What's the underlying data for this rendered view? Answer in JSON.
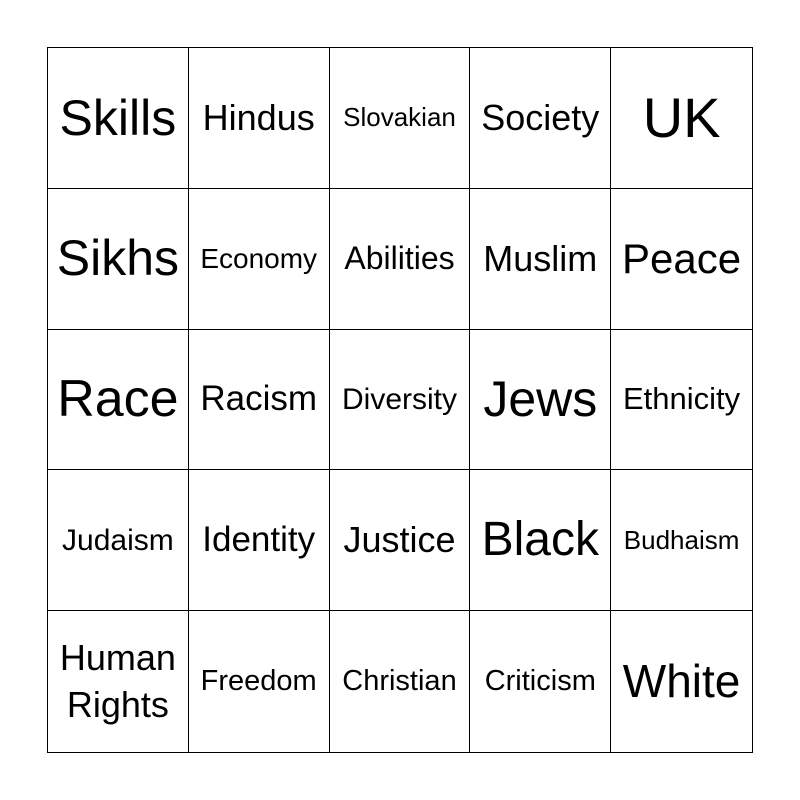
{
  "card": {
    "cells": [
      "Skills",
      "Hindus",
      "Slovakian",
      "Society",
      "UK",
      "Sikhs",
      "Economy",
      "Abilities",
      "Muslim",
      "Peace",
      "Race",
      "Racism",
      "Diversity",
      "Jews",
      "Ethnicity",
      "Judaism",
      "Identity",
      "Justice",
      "Black",
      "Budhaism",
      "Human Rights",
      "Freedom",
      "Christian",
      "Criticism",
      "White"
    ]
  }
}
